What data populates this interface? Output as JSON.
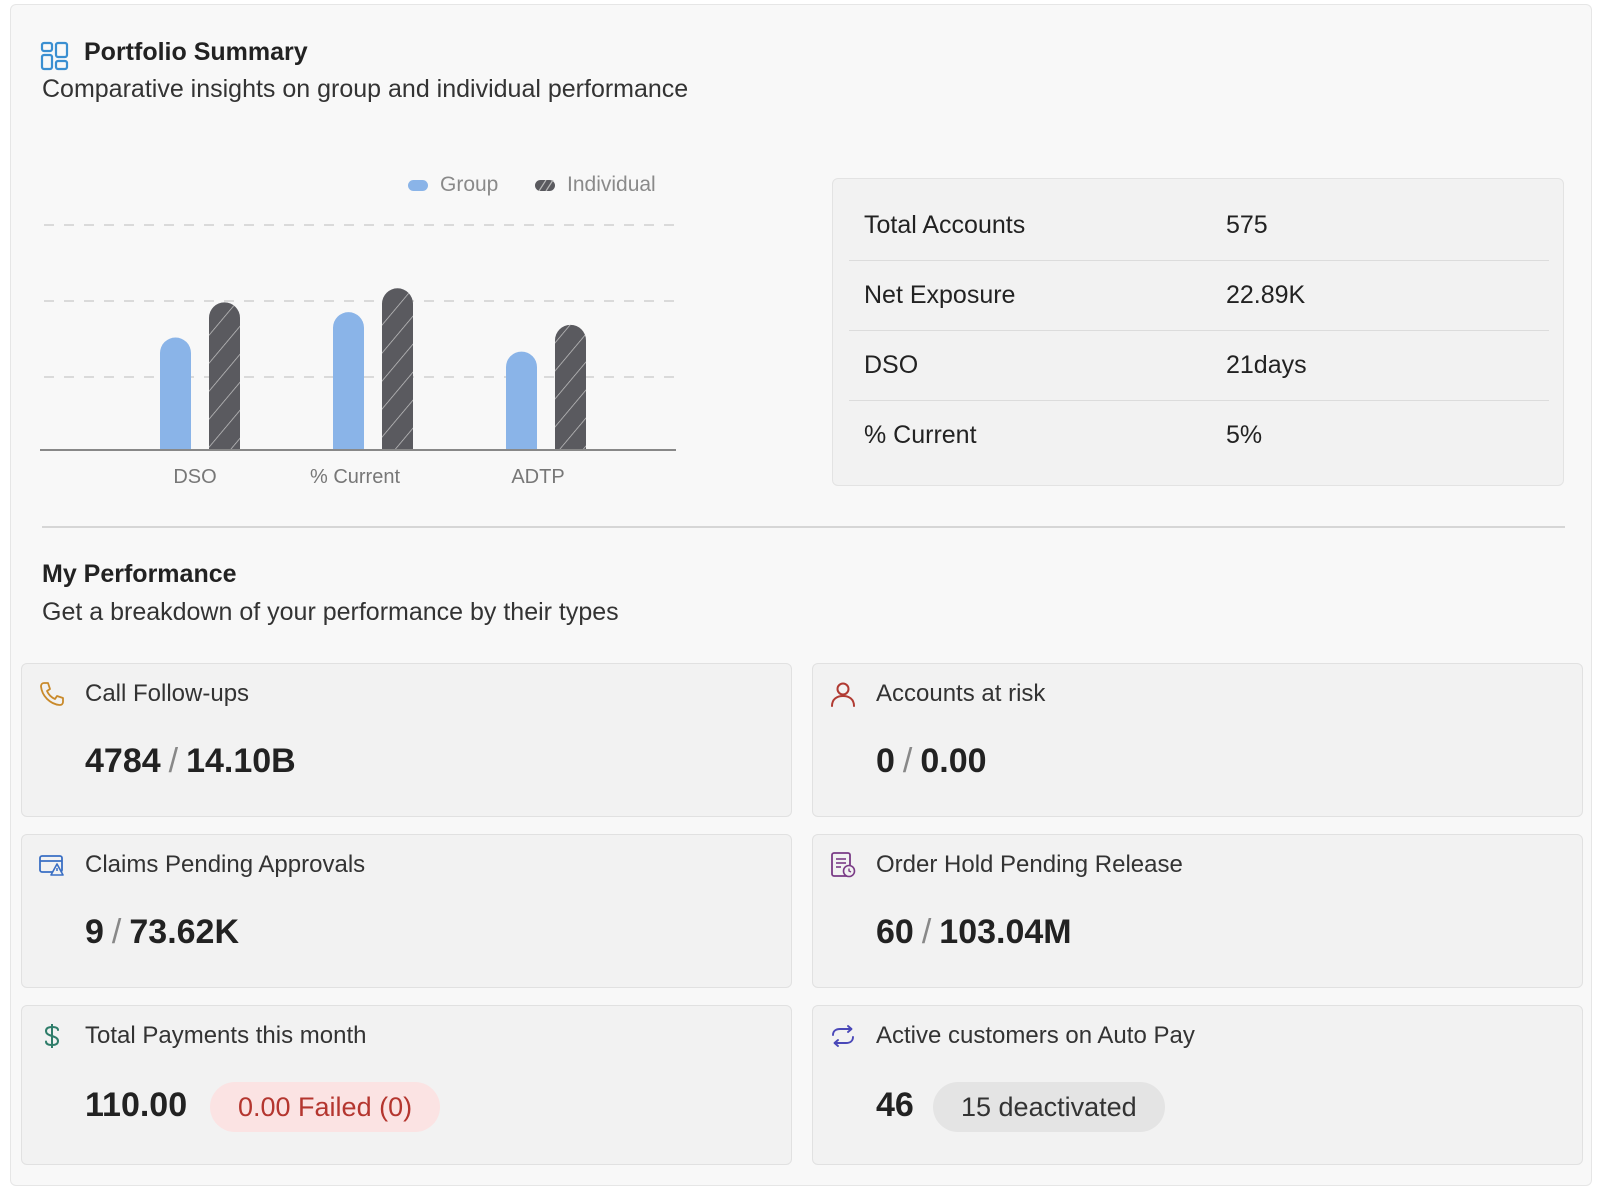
{
  "header": {
    "title": "Portfolio Summary",
    "subtitle": "Comparative insights on group and individual performance"
  },
  "chart_data": {
    "type": "bar",
    "categories": [
      "DSO",
      "% Current",
      "ADTP"
    ],
    "series": [
      {
        "name": "Group",
        "values": [
          80,
          98,
          70
        ],
        "color": "#8ab4e8"
      },
      {
        "name": "Individual",
        "values": [
          105,
          115,
          89
        ],
        "color": "#5a5a5f"
      }
    ],
    "ylim": [
      0,
      160
    ],
    "grid": true,
    "legend": "top"
  },
  "stats": [
    {
      "label": "Total Accounts",
      "value": "575"
    },
    {
      "label": "Net Exposure",
      "value": "22.89K"
    },
    {
      "label": "DSO",
      "value": "21days"
    },
    {
      "label": "% Current",
      "value": "5%"
    }
  ],
  "performance": {
    "title": "My Performance",
    "subtitle": "Get a breakdown of your performance by their types"
  },
  "cards": [
    {
      "label": "Call Follow-ups",
      "count": "4784",
      "amount": "14.10B",
      "icon": "phone-icon",
      "icon_color": "#c98a2b"
    },
    {
      "label": "Accounts at risk",
      "count": "0",
      "amount": "0.00",
      "icon": "user-icon",
      "icon_color": "#b03a32"
    },
    {
      "label": "Claims Pending Approvals",
      "count": "9",
      "amount": "73.62K",
      "icon": "claim-icon",
      "icon_color": "#3a6fc4"
    },
    {
      "label": "Order Hold Pending Release",
      "count": "60",
      "amount": "103.04M",
      "icon": "order-hold-icon",
      "icon_color": "#7a3b86"
    },
    {
      "label": "Total Payments this month",
      "count": "110.00",
      "pill": "0.00 Failed (0)",
      "icon": "dollar-icon",
      "icon_color": "#2f7d6a"
    },
    {
      "label": "Active customers on Auto Pay",
      "count": "46",
      "pill": "15 deactivated",
      "icon": "autopay-icon",
      "icon_color": "#4a48b8"
    }
  ]
}
